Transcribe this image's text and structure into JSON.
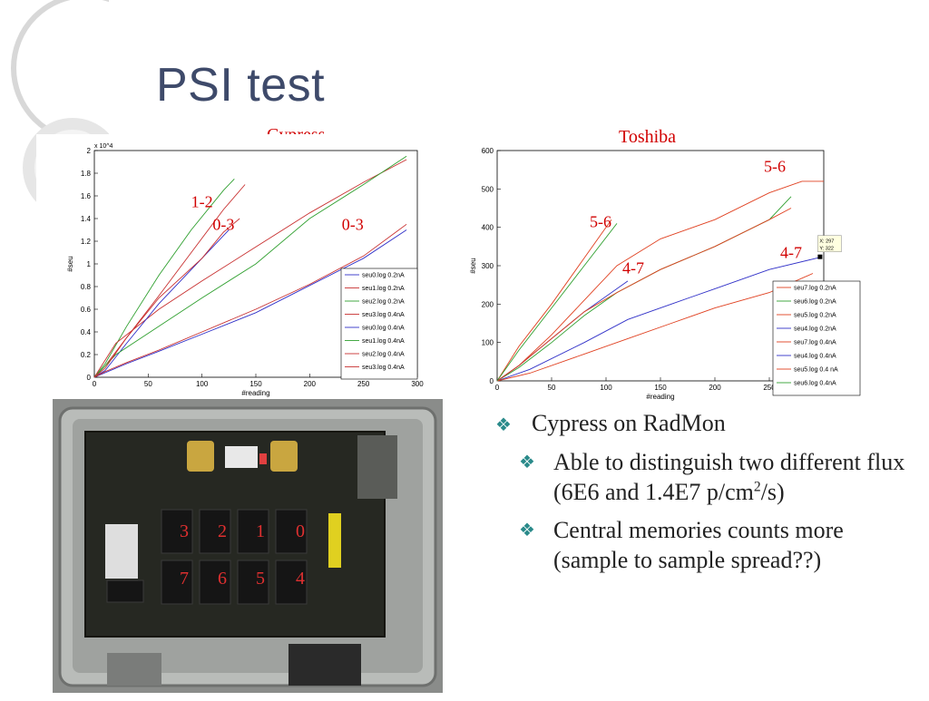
{
  "slide": {
    "title": "PSI test",
    "bullets": [
      {
        "level": 1,
        "text": "Cypress on RadMon"
      },
      {
        "level": 2,
        "text": "Able to distinguish two different flux (6E6 and 1.4E7 p/cm",
        "sup": "2",
        "after": "/s)"
      },
      {
        "level": 2,
        "text": "Central memories counts more (sample to sample spread??)"
      }
    ],
    "bullet_glyph": "❖",
    "photo_labels": {
      "top": [
        "3",
        "2",
        "1",
        "0"
      ],
      "bottom": [
        "7",
        "6",
        "5",
        "4"
      ]
    }
  },
  "chart_data": [
    {
      "type": "line",
      "title": "Cypress",
      "xlabel": "#reading",
      "ylabel": "#seu",
      "y_multiplier": "x 10^4",
      "xlim": [
        0,
        300
      ],
      "ylim": [
        0,
        2
      ],
      "xticks": [
        "0",
        "50",
        "100",
        "150",
        "200",
        "250",
        "300"
      ],
      "yticks": [
        "0",
        "0.2",
        "0.4",
        "0.6",
        "0.8",
        "1",
        "1.2",
        "1.4",
        "1.6",
        "1.8",
        "2"
      ],
      "legend_position": "bottom-right",
      "series": [
        {
          "name": "seu0.log 0.2nA",
          "color": "#3030c8",
          "x": [
            0,
            10,
            30,
            60,
            100,
            150,
            200,
            250,
            290
          ],
          "y": [
            0,
            0.04,
            0.12,
            0.23,
            0.38,
            0.57,
            0.81,
            1.05,
            1.3
          ]
        },
        {
          "name": "seu1.log 0.2nA",
          "color": "#c83030",
          "x": [
            0,
            10,
            30,
            60,
            90,
            120,
            140
          ],
          "y": [
            0,
            0.1,
            0.35,
            0.72,
            1.1,
            1.48,
            1.7
          ]
        },
        {
          "name": "seu2.log 0.2nA",
          "color": "#30a030",
          "x": [
            0,
            10,
            30,
            60,
            90,
            120,
            130
          ],
          "y": [
            0,
            0.12,
            0.45,
            0.9,
            1.3,
            1.65,
            1.75
          ]
        },
        {
          "name": "seu3.log 0.4nA",
          "color": "#c83030",
          "x": [
            0,
            20,
            60,
            100,
            150,
            200,
            250,
            290
          ],
          "y": [
            0,
            0.3,
            0.6,
            0.85,
            1.15,
            1.45,
            1.72,
            1.92
          ]
        },
        {
          "name": "seu0.log 0.4nA",
          "color": "#3030c8",
          "x": [
            0,
            10,
            30,
            60,
            90,
            110,
            125
          ],
          "y": [
            0,
            0.06,
            0.3,
            0.65,
            0.95,
            1.15,
            1.3
          ]
        },
        {
          "name": "seu1.log 0.4nA",
          "color": "#30a030",
          "x": [
            0,
            20,
            60,
            100,
            150,
            200,
            250,
            290
          ],
          "y": [
            0,
            0.2,
            0.45,
            0.7,
            1.0,
            1.4,
            1.7,
            1.95
          ]
        },
        {
          "name": "seu2.log 0.4nA",
          "color": "#c83030",
          "x": [
            0,
            10,
            30,
            60,
            100,
            150,
            200,
            250,
            290
          ],
          "y": [
            0,
            0.05,
            0.13,
            0.24,
            0.4,
            0.6,
            0.82,
            1.07,
            1.35
          ]
        },
        {
          "name": "seu3.log 0.4nA",
          "color": "#c83030",
          "x": [
            0,
            10,
            30,
            60,
            100,
            120,
            135
          ],
          "y": [
            0,
            0.08,
            0.35,
            0.7,
            1.05,
            1.28,
            1.4
          ]
        }
      ],
      "annotations": [
        {
          "text": "1-2",
          "x": 100,
          "y": 1.5
        },
        {
          "text": "0-3",
          "x": 120,
          "y": 1.3
        },
        {
          "text": "0-3",
          "x": 240,
          "y": 1.3
        }
      ]
    },
    {
      "type": "line",
      "title": "Toshiba",
      "xlabel": "#reading",
      "ylabel": "#seu",
      "xlim": [
        0,
        300
      ],
      "ylim": [
        0,
        600
      ],
      "xticks": [
        "0",
        "50",
        "100",
        "150",
        "200",
        "250"
      ],
      "yticks": [
        "0",
        "100",
        "200",
        "300",
        "400",
        "500",
        "600"
      ],
      "legend_position": "right",
      "datatip": {
        "text": [
          "X: 297",
          "Y: 322"
        ],
        "x": 297,
        "y": 322
      },
      "series": [
        {
          "name": "seu7.log 0.2nA",
          "color": "#e04020",
          "x": [
            0,
            20,
            50,
            80,
            110,
            150,
            200,
            250,
            280,
            300
          ],
          "y": [
            0,
            40,
            120,
            210,
            300,
            370,
            420,
            490,
            520,
            520
          ]
        },
        {
          "name": "seu6.log 0.2nA",
          "color": "#30a030",
          "x": [
            0,
            20,
            50,
            80,
            110,
            150,
            200,
            250,
            270
          ],
          "y": [
            0,
            35,
            100,
            170,
            230,
            290,
            350,
            420,
            480
          ]
        },
        {
          "name": "seu5.log 0.2nA",
          "color": "#e04020",
          "x": [
            0,
            20,
            50,
            80,
            105
          ],
          "y": [
            0,
            90,
            200,
            320,
            420
          ]
        },
        {
          "name": "seu4.log 0.2nA",
          "color": "#3030c8",
          "x": [
            0,
            20,
            50,
            80,
            120
          ],
          "y": [
            0,
            40,
            110,
            180,
            260
          ]
        },
        {
          "name": "seu7.log 0.4nA",
          "color": "#e04020",
          "x": [
            0,
            20,
            50,
            80,
            110,
            150,
            200,
            250,
            270
          ],
          "y": [
            0,
            40,
            110,
            180,
            230,
            290,
            350,
            420,
            450
          ]
        },
        {
          "name": "seu4.log 0.4nA",
          "color": "#3030c8",
          "x": [
            0,
            30,
            80,
            120,
            160,
            200,
            250,
            297
          ],
          "y": [
            0,
            30,
            100,
            160,
            200,
            240,
            290,
            322
          ]
        },
        {
          "name": "seu5.log 0.4 nA",
          "color": "#e04020",
          "x": [
            0,
            30,
            80,
            120,
            160,
            200,
            250,
            290
          ],
          "y": [
            0,
            20,
            70,
            110,
            150,
            190,
            230,
            280
          ]
        },
        {
          "name": "seu6.log 0.4nA",
          "color": "#30a030",
          "x": [
            0,
            20,
            50,
            80,
            110
          ],
          "y": [
            0,
            80,
            190,
            300,
            410
          ]
        }
      ],
      "annotations": [
        {
          "text": "5-6",
          "x": 255,
          "y": 545
        },
        {
          "text": "5-6",
          "x": 95,
          "y": 400
        },
        {
          "text": "4-7",
          "x": 270,
          "y": 320
        },
        {
          "text": "4-7",
          "x": 125,
          "y": 280
        }
      ]
    }
  ]
}
